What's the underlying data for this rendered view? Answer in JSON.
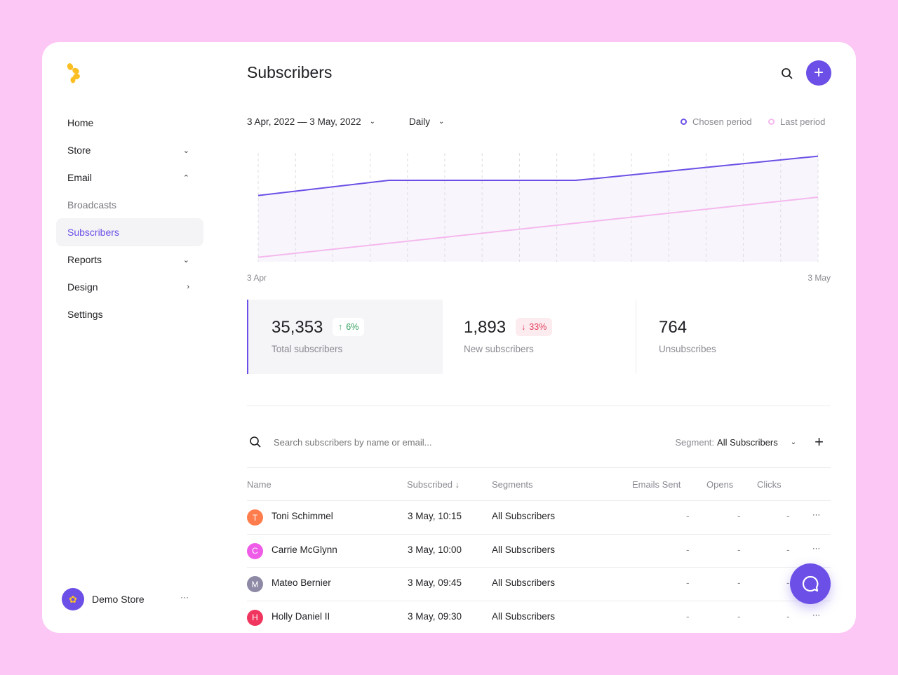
{
  "colors": {
    "accent": "#6c4fe6",
    "last_period": "#f5b8ee",
    "background": "#fcc6f5",
    "logo": "#fbbf24",
    "up": "#2e9e5b",
    "down": "#e0405e"
  },
  "sidebar": {
    "logo_icon": "flower-petal-logo",
    "items": [
      {
        "label": "Home",
        "chevron": ""
      },
      {
        "label": "Store",
        "chevron": "down"
      },
      {
        "label": "Email",
        "chevron": "up"
      },
      {
        "label": "Broadcasts",
        "chevron": "",
        "sub": true
      },
      {
        "label": "Subscribers",
        "chevron": "",
        "sub": true,
        "active": true
      },
      {
        "label": "Reports",
        "chevron": "down"
      },
      {
        "label": "Design",
        "chevron": "right"
      },
      {
        "label": "Settings",
        "chevron": ""
      }
    ],
    "store_name": "Demo Store",
    "more": "···"
  },
  "header": {
    "title": "Subscribers"
  },
  "filters": {
    "date_range": "3 Apr, 2022 — 3 May, 2022",
    "interval": "Daily"
  },
  "chart_data": {
    "type": "line",
    "x_start_label": "3 Apr",
    "x_end_label": "3 May",
    "grid": "vertical dashed",
    "legend": "top-right",
    "series": [
      {
        "name": "Chosen period",
        "points": [
          [
            0,
            59
          ],
          [
            7,
            72.5
          ],
          [
            17,
            72.5
          ],
          [
            18,
            74
          ],
          [
            30,
            94
          ]
        ]
      },
      {
        "name": "Last period",
        "points": [
          [
            0,
            4
          ],
          [
            30,
            57.5
          ]
        ]
      }
    ]
  },
  "stats": [
    {
      "value": "35,353",
      "label": "Total subscribers",
      "change": "6%",
      "direction": "up",
      "selected": true
    },
    {
      "value": "1,893",
      "label": "New subscribers",
      "change": "33%",
      "direction": "down"
    },
    {
      "value": "764",
      "label": "Unsubscribes"
    }
  ],
  "table": {
    "search_placeholder": "Search subscribers by name or email...",
    "segment_label": "Segment:",
    "segment_value": "All Subscribers",
    "columns": [
      "Name",
      "Subscribed ↓",
      "Segments",
      "Emails Sent",
      "Opens",
      "Clicks"
    ],
    "rows": [
      {
        "initial": "T",
        "color": "#ff7d4d",
        "name": "Toni Schimmel",
        "subscribed": "3 May, 10:15",
        "segment": "All Subscribers",
        "emails": "-",
        "opens": "-",
        "clicks": "-"
      },
      {
        "initial": "C",
        "color": "#ef5ce8",
        "name": "Carrie McGlynn",
        "subscribed": "3 May, 10:00",
        "segment": "All Subscribers",
        "emails": "-",
        "opens": "-",
        "clicks": "-"
      },
      {
        "initial": "M",
        "color": "#8e8aa6",
        "name": "Mateo Bernier",
        "subscribed": "3 May, 09:45",
        "segment": "All Subscribers",
        "emails": "-",
        "opens": "-",
        "clicks": "-"
      },
      {
        "initial": "H",
        "color": "#f0365f",
        "name": "Holly Daniel II",
        "subscribed": "3 May, 09:30",
        "segment": "All Subscribers",
        "emails": "-",
        "opens": "-",
        "clicks": "-"
      }
    ],
    "row_menu": "···"
  }
}
